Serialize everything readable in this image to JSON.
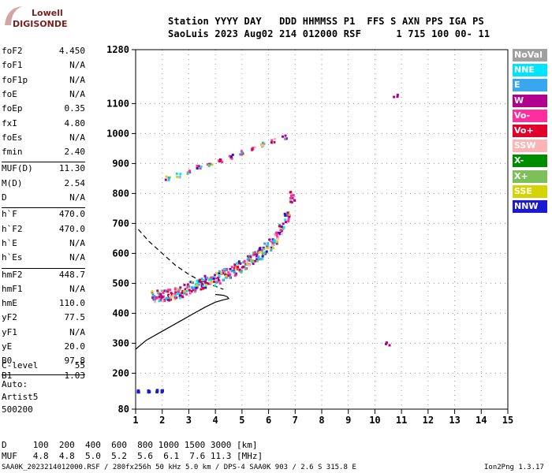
{
  "logo": {
    "line1": "Lowell",
    "line2": "DIGISONDE"
  },
  "header": {
    "row1": "Station YYYY DAY   DDD HHMMSS P1  FFS S AXN PPS IGA PS",
    "row2": "SaoLuis 2023 Aug02 214 012000 RSF      1 715 100 00- 11"
  },
  "params": [
    {
      "name": "foF2",
      "value": "4.450"
    },
    {
      "name": "foF1",
      "value": "N/A"
    },
    {
      "name": "foF1p",
      "value": "N/A"
    },
    {
      "name": "foE",
      "value": "N/A"
    },
    {
      "name": "foEp",
      "value": "0.35"
    },
    {
      "name": "fxI",
      "value": "4.80"
    },
    {
      "name": "foEs",
      "value": "N/A"
    },
    {
      "name": "fmin",
      "value": "2.40"
    },
    {
      "name": "MUF(D)",
      "value": "11.30"
    },
    {
      "name": "M(D)",
      "value": "2.54"
    },
    {
      "name": "D",
      "value": "N/A"
    },
    {
      "name": "h`F",
      "value": "470.0"
    },
    {
      "name": "h`F2",
      "value": "470.0"
    },
    {
      "name": "h`E",
      "value": "N/A"
    },
    {
      "name": "h`Es",
      "value": "N/A"
    },
    {
      "name": "hmF2",
      "value": "448.7"
    },
    {
      "name": "hmF1",
      "value": "N/A"
    },
    {
      "name": "hmE",
      "value": "110.0"
    },
    {
      "name": "yF2",
      "value": "77.5"
    },
    {
      "name": "yF1",
      "value": "N/A"
    },
    {
      "name": "yE",
      "value": "20.0"
    },
    {
      "name": "B0",
      "value": "97.8"
    },
    {
      "name": "B1",
      "value": "1.03"
    }
  ],
  "clevel": {
    "name": "C-level",
    "value": "55"
  },
  "autoscale": {
    "line1": "Auto:",
    "line2": "Artist5",
    "line3": "500200"
  },
  "legend": [
    {
      "label": "NoVal",
      "color": "#a0a0a0"
    },
    {
      "label": "NNE",
      "color": "#00e5ff"
    },
    {
      "label": "E",
      "color": "#39a7f0"
    },
    {
      "label": "W",
      "color": "#b0008c"
    },
    {
      "label": "Vo-",
      "color": "#ff2d9e"
    },
    {
      "label": "Vo+",
      "color": "#e0002a"
    },
    {
      "label": "SSW",
      "color": "#ffb4b4"
    },
    {
      "label": "X-",
      "color": "#008c00"
    },
    {
      "label": "X+",
      "color": "#7fbf5a"
    },
    {
      "label": "SSE",
      "color": "#d4d400"
    },
    {
      "label": "NNW",
      "color": "#1a1ad0"
    }
  ],
  "muf_table": {
    "row1": "D     100  200  400  600  800 1000 1500 3000 [km]",
    "row2": "MUF   4.8  4.8  5.0  5.2  5.6  6.1  7.6 11.3 [MHz]"
  },
  "footer": {
    "left": "SAA0K_2023214012000.RSF / 280fx256h 50 kHz 5.0 km / DPS-4 SAA0K 903 / 2.6 S 315.8 E",
    "right": "Ion2Png 1.3.17"
  },
  "chart_data": {
    "type": "scatter",
    "xlim": [
      1,
      15
    ],
    "ylim": [
      80,
      1280
    ],
    "x_ticks": [
      1,
      2,
      3,
      4,
      5,
      6,
      7,
      8,
      9,
      10,
      11,
      12,
      13,
      14,
      15
    ],
    "y_ticks": [
      80,
      200,
      300,
      400,
      500,
      600,
      700,
      800,
      900,
      1000,
      1100,
      1280
    ],
    "grid": true,
    "series": [
      {
        "points": [
          [
            1.7,
            455
          ],
          [
            1.9,
            458
          ],
          [
            2.1,
            460
          ],
          [
            2.3,
            462
          ],
          [
            2.5,
            465
          ],
          [
            2.7,
            470
          ],
          [
            2.9,
            478
          ],
          [
            3.1,
            485
          ],
          [
            3.3,
            492
          ],
          [
            3.5,
            500
          ],
          [
            3.7,
            505
          ],
          [
            3.9,
            512
          ],
          [
            4.1,
            520
          ],
          [
            4.3,
            528
          ],
          [
            4.5,
            535
          ],
          [
            4.7,
            545
          ],
          [
            4.9,
            555
          ],
          [
            5.1,
            565
          ],
          [
            5.3,
            575
          ],
          [
            5.5,
            585
          ],
          [
            5.7,
            600
          ],
          [
            5.9,
            615
          ],
          [
            6.1,
            630
          ],
          [
            6.3,
            650
          ],
          [
            6.5,
            680
          ],
          [
            6.7,
            720
          ],
          [
            6.9,
            790
          ]
        ]
      },
      {
        "points": [
          [
            2.2,
            850
          ],
          [
            2.6,
            860
          ],
          [
            3.0,
            872
          ],
          [
            3.4,
            885
          ],
          [
            3.8,
            898
          ],
          [
            4.2,
            910
          ],
          [
            4.6,
            922
          ],
          [
            5.0,
            935
          ],
          [
            5.4,
            948
          ],
          [
            5.8,
            962
          ],
          [
            6.2,
            975
          ],
          [
            6.6,
            988
          ]
        ]
      },
      {
        "points": [
          [
            1.1,
            140
          ],
          [
            1.5,
            140
          ],
          [
            1.8,
            140
          ],
          [
            2.0,
            140
          ]
        ]
      },
      {
        "points": [
          [
            10.5,
            298
          ],
          [
            10.8,
            1125
          ]
        ]
      }
    ],
    "profile_solid": [
      [
        1.0,
        280
      ],
      [
        1.4,
        310
      ],
      [
        2.0,
        340
      ],
      [
        2.6,
        370
      ],
      [
        3.2,
        400
      ],
      [
        3.6,
        420
      ],
      [
        4.0,
        437
      ],
      [
        4.3,
        445
      ],
      [
        4.5,
        449
      ],
      [
        4.45,
        455
      ],
      [
        4.3,
        460
      ],
      [
        4.0,
        463
      ]
    ],
    "profile_dashed": [
      [
        1.1,
        680
      ],
      [
        1.5,
        640
      ],
      [
        2.0,
        600
      ],
      [
        2.5,
        560
      ],
      [
        3.0,
        530
      ],
      [
        3.5,
        505
      ],
      [
        4.0,
        490
      ],
      [
        4.3,
        480
      ]
    ]
  }
}
